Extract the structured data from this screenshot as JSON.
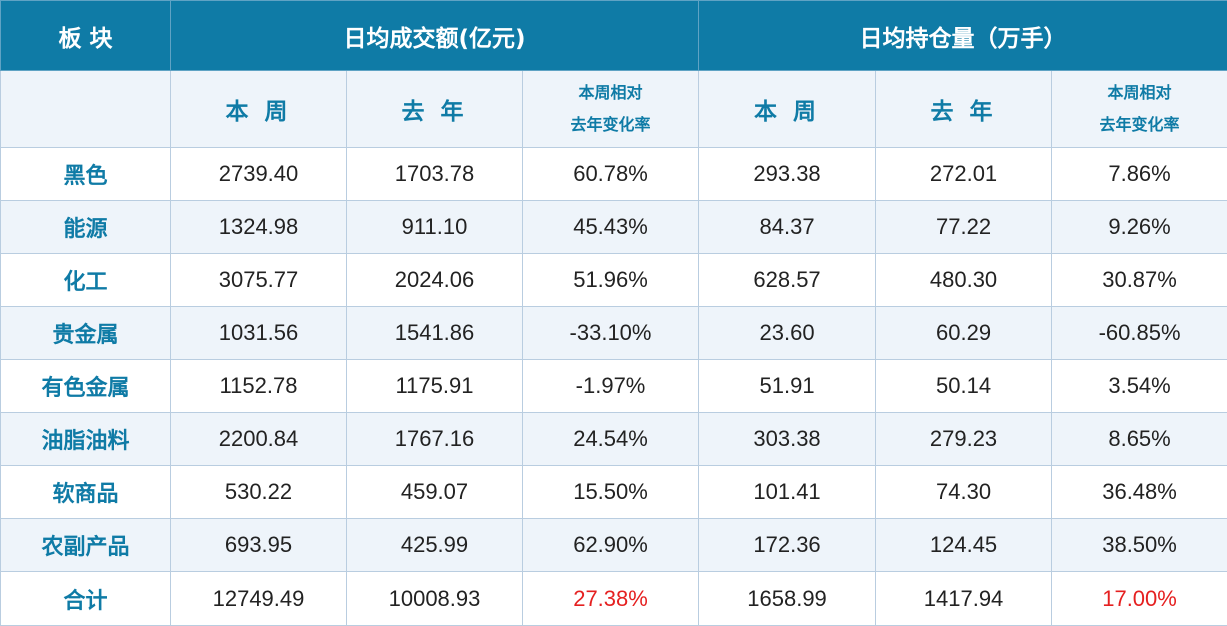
{
  "header": {
    "category": "板 块",
    "group1": "日均成交额(亿元)",
    "group2": "日均持仓量（万手）",
    "this_week": "本 周",
    "last_year": "去 年",
    "change_line1": "本周相对",
    "change_line2": "去年变化率"
  },
  "accent_color": "#e52020",
  "rows": [
    {
      "category": "黑色",
      "vol_week": "2739.40",
      "vol_last": "1703.78",
      "vol_chg": "60.78%",
      "oi_week": "293.38",
      "oi_last": "272.01",
      "oi_chg": "7.86%"
    },
    {
      "category": "能源",
      "vol_week": "1324.98",
      "vol_last": "911.10",
      "vol_chg": "45.43%",
      "oi_week": "84.37",
      "oi_last": "77.22",
      "oi_chg": "9.26%"
    },
    {
      "category": "化工",
      "vol_week": "3075.77",
      "vol_last": "2024.06",
      "vol_chg": "51.96%",
      "oi_week": "628.57",
      "oi_last": "480.30",
      "oi_chg": "30.87%"
    },
    {
      "category": "贵金属",
      "vol_week": "1031.56",
      "vol_last": "1541.86",
      "vol_chg": "-33.10%",
      "oi_week": "23.60",
      "oi_last": "60.29",
      "oi_chg": "-60.85%"
    },
    {
      "category": "有色金属",
      "vol_week": "1152.78",
      "vol_last": "1175.91",
      "vol_chg": "-1.97%",
      "oi_week": "51.91",
      "oi_last": "50.14",
      "oi_chg": "3.54%"
    },
    {
      "category": "油脂油料",
      "vol_week": "2200.84",
      "vol_last": "1767.16",
      "vol_chg": "24.54%",
      "oi_week": "303.38",
      "oi_last": "279.23",
      "oi_chg": "8.65%"
    },
    {
      "category": "软商品",
      "vol_week": "530.22",
      "vol_last": "459.07",
      "vol_chg": "15.50%",
      "oi_week": "101.41",
      "oi_last": "74.30",
      "oi_chg": "36.48%"
    },
    {
      "category": "农副产品",
      "vol_week": "693.95",
      "vol_last": "425.99",
      "vol_chg": "62.90%",
      "oi_week": "172.36",
      "oi_last": "124.45",
      "oi_chg": "38.50%"
    }
  ],
  "total": {
    "category": "合计",
    "vol_week": "12749.49",
    "vol_last": "10008.93",
    "vol_chg": "27.38%",
    "oi_week": "1658.99",
    "oi_last": "1417.94",
    "oi_chg": "17.00%"
  }
}
